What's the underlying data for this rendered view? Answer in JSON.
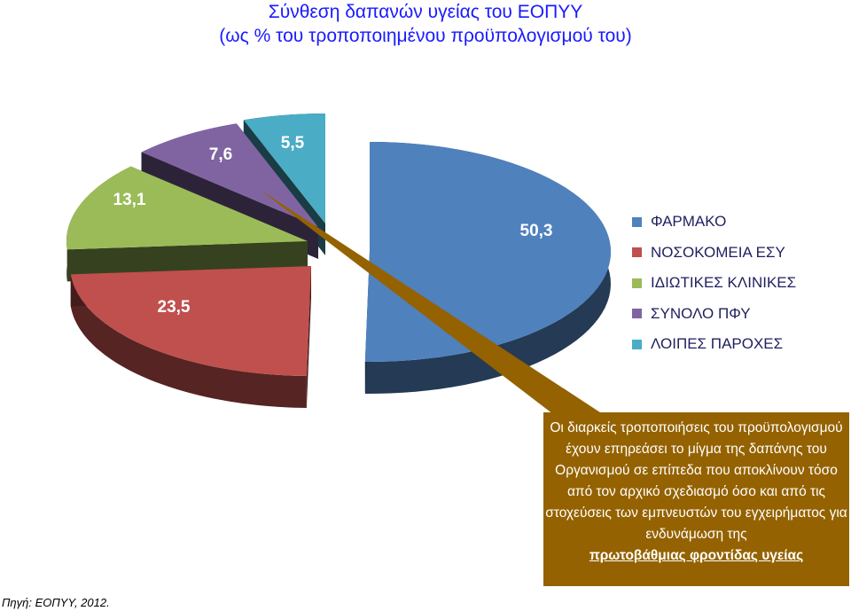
{
  "chart_data": {
    "type": "pie",
    "title": "Σύνθεση δαπανών υγείας του ΕΟΠΥΥ",
    "subtitle": "(ως % του τροποποιημένου προϋπολογισμού του)",
    "categories": [
      "ΦΑΡΜΑΚΟ",
      "ΝΟΣΟΚΟΜΕΙΑ ΕΣΥ",
      "ΙΔΙΩΤΙΚΕΣ ΚΛΙΝΙΚΕΣ",
      "ΣΥΝΟΛΟ ΠΦΥ",
      "ΛΟΙΠΕΣ ΠΑΡΟΧΕΣ"
    ],
    "values": [
      50.3,
      23.5,
      13.1,
      7.6,
      5.5
    ],
    "value_labels": [
      "50,3",
      "23,5",
      "13,1",
      "7,6",
      "5,5"
    ],
    "colors": [
      "#4f81bd",
      "#c0504d",
      "#9bbb59",
      "#8064a2",
      "#4bacc6"
    ],
    "legend_placement": "right"
  },
  "callout": {
    "text": "Οι διαρκείς τροποποιήσεις του προϋπολογισμού έχουν επηρεάσει το μίγμα της δαπάνης του Οργανισμού σε επίπεδα που αποκλίνουν τόσο από τον αρχικό σχεδιασμό όσο και από τις στοχεύσεις των εμπνευστών του εγχειρήματος για ενδυνάμωση της",
    "emphasis": "πρωτοβάθμιας φροντίδας υγείας"
  },
  "source": "Πηγή: ΕΟΠΥΥ, 2012."
}
